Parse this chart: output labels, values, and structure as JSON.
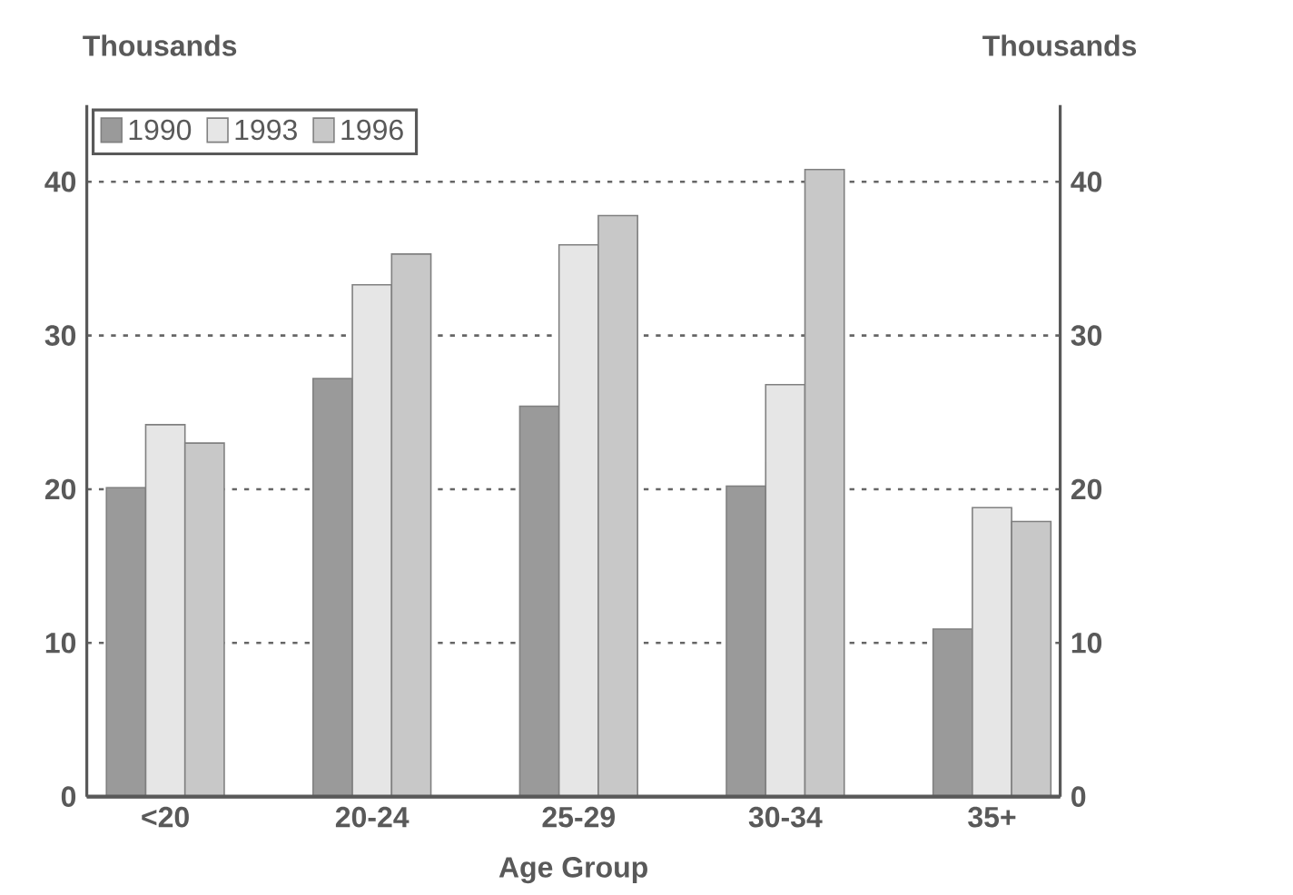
{
  "chart_data": {
    "type": "bar",
    "xlabel": "Age Group",
    "ylabel": "Thousands",
    "y2label": "Thousands",
    "categories": [
      "<20",
      "20-24",
      "25-29",
      "30-34",
      "35+"
    ],
    "series": [
      {
        "name": "1990",
        "color": "#9a9a9a",
        "values": [
          20.1,
          27.2,
          25.4,
          20.2,
          10.9
        ]
      },
      {
        "name": "1993",
        "color": "#e6e6e6",
        "values": [
          24.2,
          33.3,
          35.9,
          26.8,
          18.8
        ]
      },
      {
        "name": "1996",
        "color": "#c8c8c8",
        "values": [
          23.0,
          35.3,
          37.8,
          40.8,
          17.9
        ]
      }
    ],
    "ylim": [
      0,
      45
    ],
    "yticks": [
      0,
      10,
      20,
      30,
      40
    ],
    "y2lim": [
      0,
      45
    ],
    "y2ticks": [
      0,
      10,
      20,
      30,
      40
    ],
    "grid": "y",
    "legend": "top left"
  }
}
